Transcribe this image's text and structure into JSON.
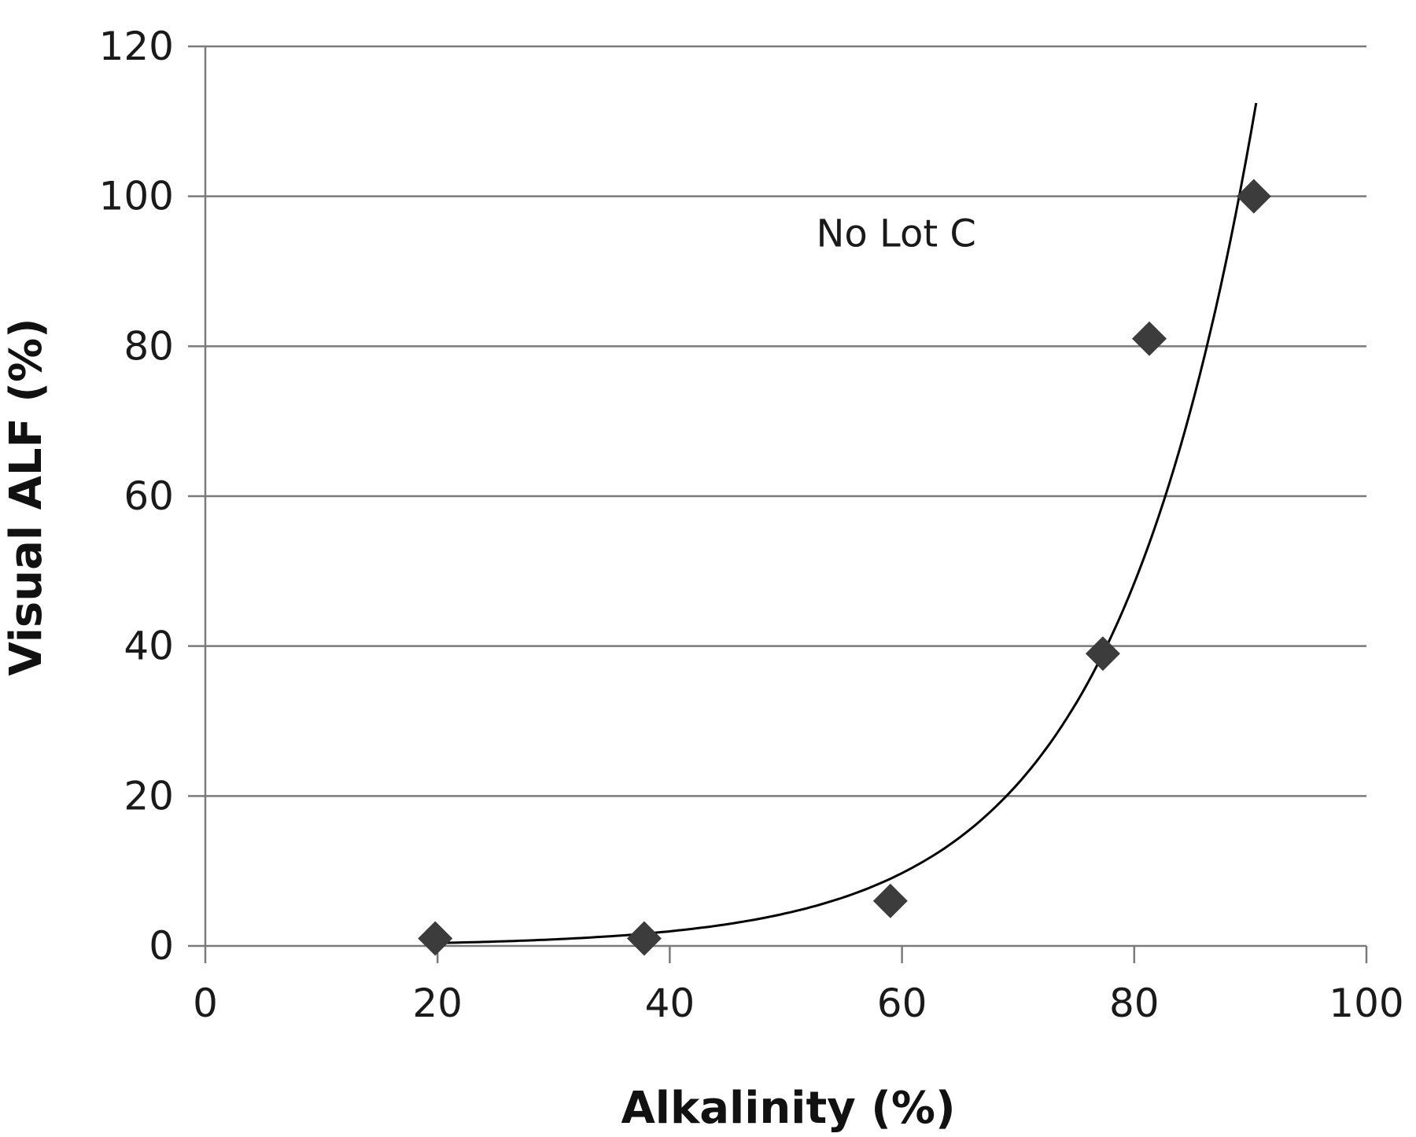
{
  "chart_data": {
    "type": "scatter",
    "title": "",
    "xlabel": "Alkalinity (%)",
    "ylabel": "Visual ALF (%)",
    "xlim": [
      0,
      100
    ],
    "ylim": [
      0,
      120
    ],
    "x_ticks": [
      0,
      20,
      40,
      60,
      80,
      100
    ],
    "y_ticks": [
      0,
      20,
      40,
      60,
      80,
      100,
      120
    ],
    "grid": "horizontal",
    "legend": "none",
    "annotations": [
      {
        "text": "No Lot C",
        "x": 59.5,
        "y": 95
      }
    ],
    "series": [
      {
        "marker": "diamond",
        "color": "#3c3c3c",
        "x": [
          19.8,
          37.8,
          59.0,
          77.3,
          81.3,
          90.3
        ],
        "y": [
          1,
          1,
          6,
          39,
          81,
          100
        ]
      }
    ],
    "trendline": {
      "type": "exponential",
      "color": "#000000",
      "a": 0.0785,
      "b": 0.0803,
      "x_range": [
        20,
        90.5
      ]
    }
  }
}
